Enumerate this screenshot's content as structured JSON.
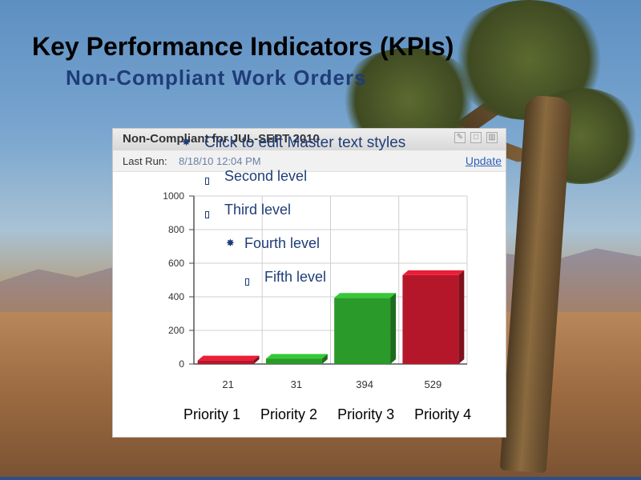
{
  "slide": {
    "title": "Key Performance Indicators (KPIs)",
    "subtitle": "Non-Compliant Work Orders"
  },
  "panel": {
    "title": "Non-Compliant for JUL-SEPT 2010",
    "last_run_label": "Last Run:",
    "last_run_value": "8/18/10 12:04 PM",
    "update_label": "Update"
  },
  "outline": {
    "level1": "Click to edit Master text styles",
    "level2": "Second level",
    "level3": "Third level",
    "level4": "Fourth level",
    "level5": "Fifth level"
  },
  "priority_labels": [
    "Priority 1",
    "Priority 2",
    "Priority 3",
    "Priority 4"
  ],
  "chart_data": {
    "type": "bar",
    "categories": [
      "21",
      "31",
      "394",
      "529"
    ],
    "values": [
      21,
      31,
      394,
      529
    ],
    "colors": [
      "#b5172a",
      "#2a9a2a",
      "#2a9a2a",
      "#b5172a"
    ],
    "ylim": [
      0,
      1000
    ],
    "yticks": [
      0,
      200,
      400,
      600,
      800,
      1000
    ],
    "grid": true
  }
}
